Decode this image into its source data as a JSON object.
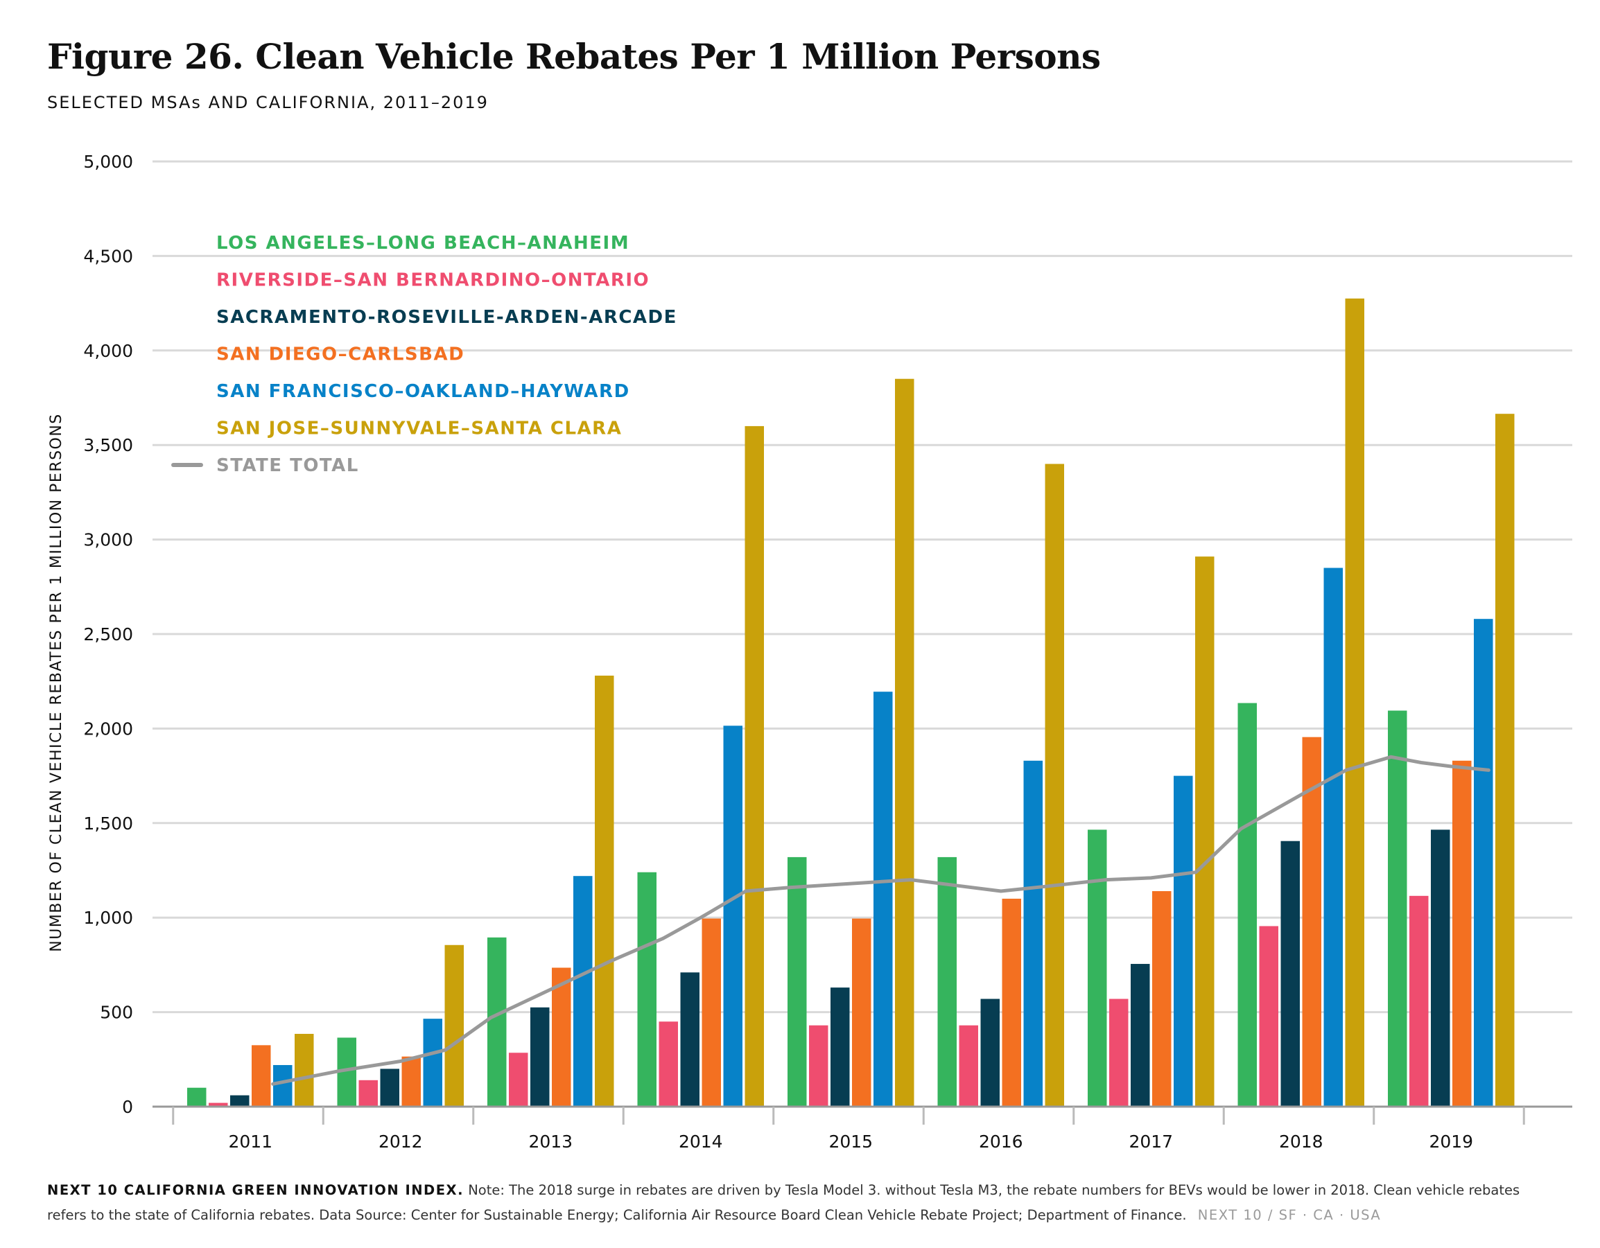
{
  "title": "Figure 26. Clean Vehicle Rebates Per 1 Million Persons",
  "subtitle": "SELECTED MSAs AND CALIFORNIA, 2011–2019",
  "footer": {
    "lead": "NEXT 10 CALIFORNIA GREEN INNOVATION INDEX.",
    "note": "Note: The 2018 surge in rebates are driven by Tesla Model 3. without Tesla M3, the rebate numbers for BEVs would be lower in 2018. Clean vehicle rebates refers to the state of California rebates. Data Source: Center for Sustainable Energy; California Air Resource Board Clean Vehicle Rebate Project; Department of Finance.",
    "brand": "NEXT 10 / SF · CA · USA"
  },
  "chart_data": {
    "type": "bar",
    "title": "Figure 26. Clean Vehicle Rebates Per 1 Million Persons",
    "subtitle": "SELECTED MSAs AND CALIFORNIA, 2011–2019",
    "xlabel": "",
    "ylabel": "NUMBER OF CLEAN VEHICLE REBATES PER 1 MILLION PERSONS",
    "ylim": [
      0,
      5000
    ],
    "yticks": [
      0,
      500,
      1000,
      1500,
      2000,
      2500,
      3000,
      3500,
      4000,
      4500,
      5000
    ],
    "ytick_labels": [
      "0",
      "500",
      "1,000",
      "1,500",
      "2,000",
      "2,500",
      "3,000",
      "3,500",
      "4,000",
      "4,500",
      "5,000"
    ],
    "grid": true,
    "legend_position": "top-left",
    "categories": [
      "2011",
      "2012",
      "2013",
      "2014",
      "2015",
      "2016",
      "2017",
      "2018",
      "2019"
    ],
    "series": [
      {
        "name": "LOS ANGELES–LONG BEACH–ANAHEIM",
        "color": "#35b45d",
        "values": [
          100,
          365,
          895,
          1240,
          1320,
          1320,
          1465,
          2135,
          2095
        ]
      },
      {
        "name": "RIVERSIDE–SAN BERNARDINO–ONTARIO",
        "color": "#ef4d6f",
        "values": [
          20,
          140,
          285,
          450,
          430,
          430,
          570,
          955,
          1115
        ]
      },
      {
        "name": "SACRAMENTO-ROSEVILLE-ARDEN-ARCADE",
        "color": "#073d52",
        "values": [
          60,
          200,
          525,
          710,
          630,
          570,
          755,
          1405,
          1465
        ]
      },
      {
        "name": "SAN DIEGO–CARLSBAD",
        "color": "#f37021",
        "values": [
          325,
          265,
          735,
          995,
          995,
          1100,
          1140,
          1955,
          1830
        ]
      },
      {
        "name": "SAN FRANCISCO–OAKLAND–HAYWARD",
        "color": "#0782c8",
        "values": [
          220,
          465,
          1220,
          2015,
          2195,
          1830,
          1750,
          2850,
          2580
        ]
      },
      {
        "name": "SAN JOSE–SUNNYVALE–SANTA CLARA",
        "color": "#c9a10b",
        "values": [
          385,
          855,
          2280,
          3600,
          3850,
          3400,
          2910,
          4275,
          3665
        ]
      }
    ],
    "line": {
      "name": "STATE TOTAL",
      "color": "#999999",
      "x": [
        2011.15,
        2011.6,
        2012.0,
        2012.3,
        2012.6,
        2013.0,
        2013.4,
        2013.75,
        2014.0,
        2014.3,
        2014.6,
        2015.0,
        2015.4,
        2015.7,
        2016.0,
        2016.3,
        2016.7,
        2017.0,
        2017.3,
        2017.6,
        2018.0,
        2018.3,
        2018.6,
        2018.8,
        2019.0,
        2019.25
      ],
      "y": [
        120,
        190,
        240,
        300,
        470,
        620,
        770,
        890,
        1000,
        1140,
        1160,
        1180,
        1200,
        1170,
        1140,
        1165,
        1200,
        1210,
        1240,
        1470,
        1650,
        1780,
        1850,
        1820,
        1800,
        1780
      ]
    }
  }
}
